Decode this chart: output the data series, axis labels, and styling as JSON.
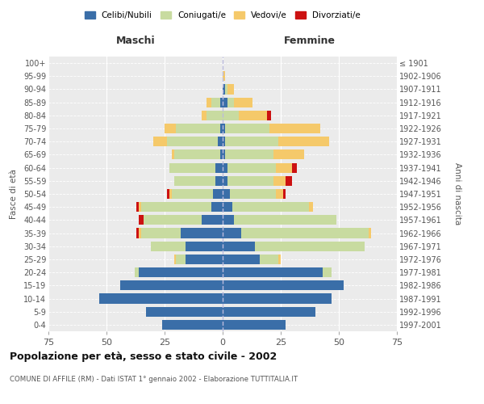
{
  "age_groups": [
    "0-4",
    "5-9",
    "10-14",
    "15-19",
    "20-24",
    "25-29",
    "30-34",
    "35-39",
    "40-44",
    "45-49",
    "50-54",
    "55-59",
    "60-64",
    "65-69",
    "70-74",
    "75-79",
    "80-84",
    "85-89",
    "90-94",
    "95-99",
    "100+"
  ],
  "birth_years": [
    "1997-2001",
    "1992-1996",
    "1987-1991",
    "1982-1986",
    "1977-1981",
    "1972-1976",
    "1967-1971",
    "1962-1966",
    "1957-1961",
    "1952-1956",
    "1947-1951",
    "1942-1946",
    "1937-1941",
    "1932-1936",
    "1927-1931",
    "1922-1926",
    "1917-1921",
    "1912-1916",
    "1907-1911",
    "1902-1906",
    "≤ 1901"
  ],
  "maschi": {
    "celibi": [
      26,
      33,
      53,
      44,
      36,
      16,
      16,
      18,
      9,
      5,
      4,
      3,
      3,
      1,
      2,
      1,
      0,
      1,
      0,
      0,
      0
    ],
    "coniugati": [
      0,
      0,
      0,
      0,
      2,
      4,
      15,
      17,
      25,
      30,
      18,
      18,
      20,
      20,
      22,
      19,
      7,
      4,
      0,
      0,
      0
    ],
    "vedovi": [
      0,
      0,
      0,
      0,
      0,
      1,
      0,
      1,
      0,
      1,
      1,
      0,
      0,
      1,
      6,
      5,
      2,
      2,
      0,
      0,
      0
    ],
    "divorziati": [
      0,
      0,
      0,
      0,
      0,
      0,
      0,
      1,
      2,
      1,
      1,
      0,
      0,
      0,
      0,
      0,
      0,
      0,
      0,
      0,
      0
    ]
  },
  "femmine": {
    "nubili": [
      27,
      40,
      47,
      52,
      43,
      16,
      14,
      8,
      5,
      4,
      3,
      2,
      2,
      1,
      1,
      1,
      0,
      2,
      1,
      0,
      0
    ],
    "coniugate": [
      0,
      0,
      0,
      0,
      4,
      8,
      47,
      55,
      44,
      33,
      20,
      20,
      21,
      21,
      23,
      19,
      7,
      3,
      1,
      0,
      0
    ],
    "vedove": [
      0,
      0,
      0,
      0,
      0,
      1,
      0,
      1,
      0,
      2,
      3,
      5,
      7,
      13,
      22,
      22,
      12,
      8,
      3,
      1,
      0
    ],
    "divorziate": [
      0,
      0,
      0,
      0,
      0,
      0,
      0,
      0,
      0,
      0,
      1,
      3,
      2,
      0,
      0,
      0,
      2,
      0,
      0,
      0,
      0
    ]
  },
  "colors": {
    "celibi": "#3a6ea8",
    "coniugati": "#c8dba0",
    "vedovi": "#f5c96a",
    "divorziati": "#cc1111"
  },
  "xlim": 75,
  "title": "Popolazione per età, sesso e stato civile - 2002",
  "subtitle": "COMUNE DI AFFILE (RM) - Dati ISTAT 1° gennaio 2002 - Elaborazione TUTTITALIA.IT",
  "ylabel_left": "Fasce di età",
  "ylabel_right": "Anni di nascita",
  "label_maschi": "Maschi",
  "label_femmine": "Femmine",
  "legend_labels": [
    "Celibi/Nubili",
    "Coniugati/e",
    "Vedovi/e",
    "Divorziati/e"
  ],
  "background_color": "#ffffff",
  "plot_bg_color": "#ebebeb"
}
